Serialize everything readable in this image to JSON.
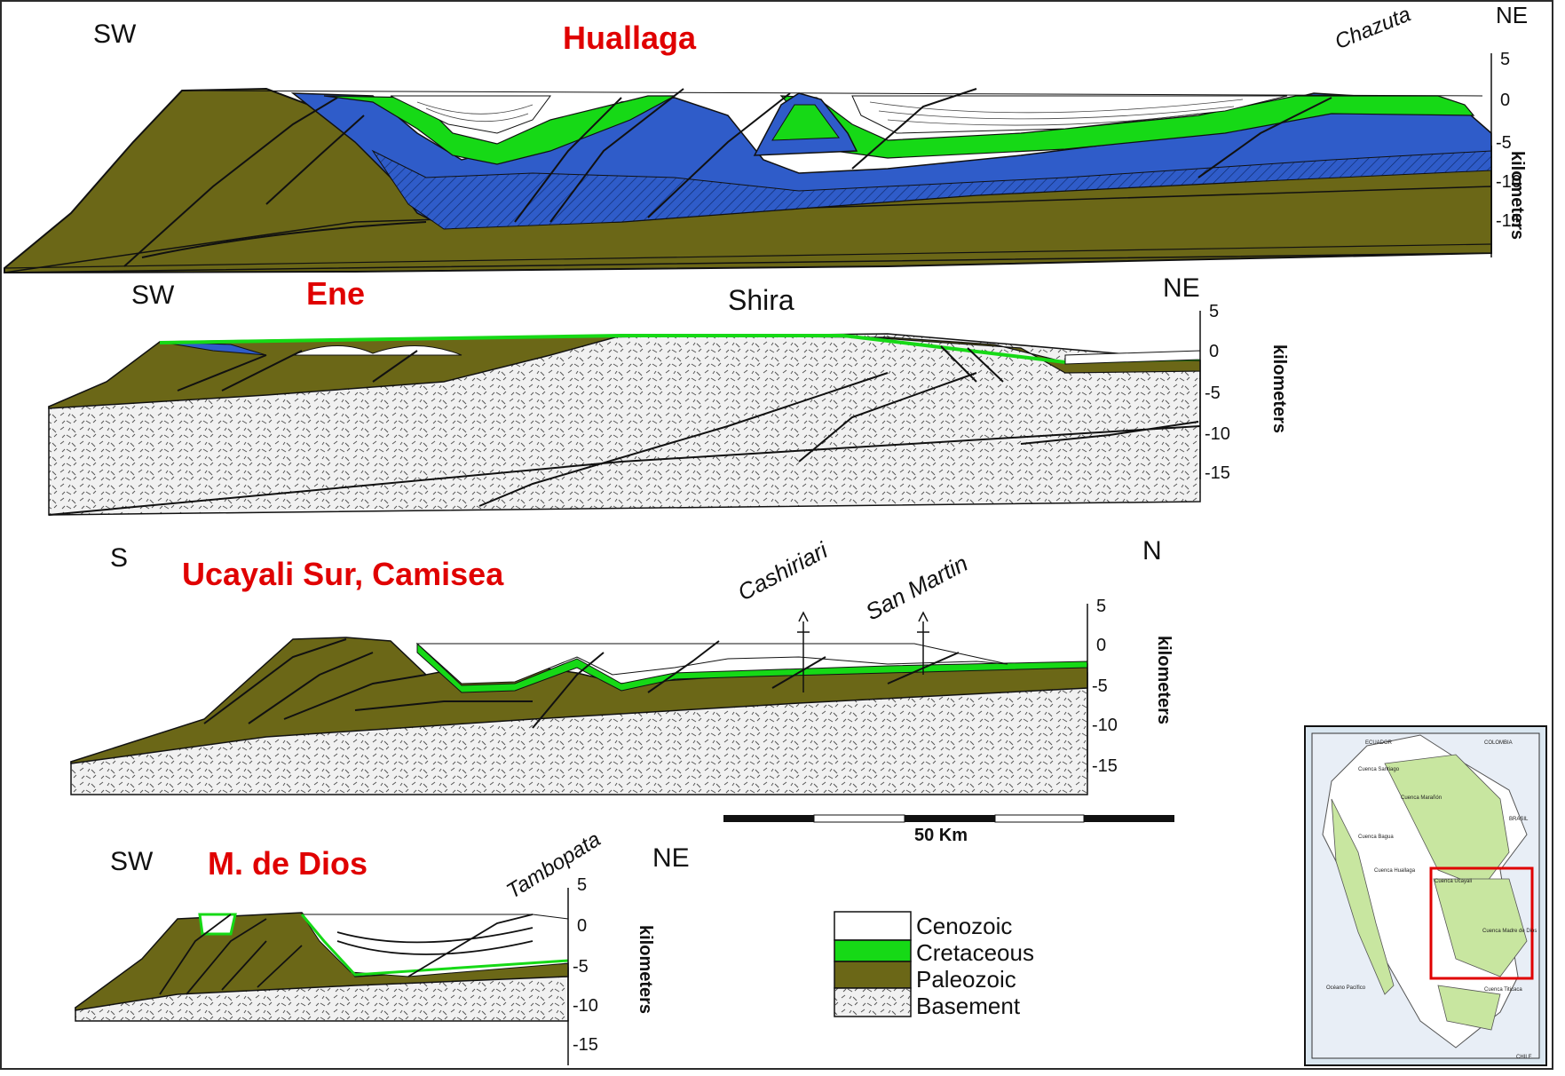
{
  "sections": [
    {
      "title": "Huallaga",
      "left_dir": "SW",
      "right_dir": "NE",
      "localities": [
        "Chazuta"
      ],
      "axis_label": "kilometers",
      "ticks": [
        "5",
        "0",
        "-5",
        "-10",
        "-15"
      ]
    },
    {
      "title": "Ene",
      "left_dir": "SW",
      "right_dir": "NE",
      "localities": [
        "Shira"
      ],
      "axis_label": "kilometers",
      "ticks": [
        "5",
        "0",
        "-5",
        "-10",
        "-15"
      ]
    },
    {
      "title": "Ucayali Sur, Camisea",
      "left_dir": "S",
      "right_dir": "N",
      "localities": [
        "Cashiriari",
        "San Martin"
      ],
      "axis_label": "kilometers",
      "ticks": [
        "5",
        "0",
        "-5",
        "-10",
        "-15"
      ]
    },
    {
      "title": "M. de Dios",
      "left_dir": "SW",
      "right_dir": "NE",
      "localities": [
        "Tambopata"
      ],
      "axis_label": "kilometers",
      "ticks": [
        "5",
        "0",
        "-5",
        "-10",
        "-15"
      ]
    }
  ],
  "scale_bar": {
    "label": "50 Km"
  },
  "legend": [
    {
      "label": "Cenozoic",
      "color": "#ffffff"
    },
    {
      "label": "Cretaceous",
      "color": "#16d916"
    },
    {
      "label": "Paleozoic",
      "color": "#6b6717"
    },
    {
      "label": "Basement",
      "color": "#f1f1f1"
    }
  ],
  "colors": {
    "title_red": "#e00000",
    "jurassic_blue": "#2f5cc9",
    "paleozoic": "#6b6717",
    "cretaceous": "#16d916"
  },
  "inset_map": {
    "labels": {
      "ecuador": "ECUADOR",
      "colombia": "COLOMBIA",
      "brasil": "BRASIL",
      "chile": "CHILE",
      "oceano": "Océano Pacífico",
      "santiago": "Cuenca Santiago",
      "maranon": "Cuenca Marañón",
      "ucayali": "Cuenca Ucayali",
      "madre": "Cuenca Madre de Dios",
      "huallaga": "Cuenca Huallaga",
      "bagua": "Cuenca Bagua",
      "titicaca": "Cuenca Titicaca"
    }
  }
}
